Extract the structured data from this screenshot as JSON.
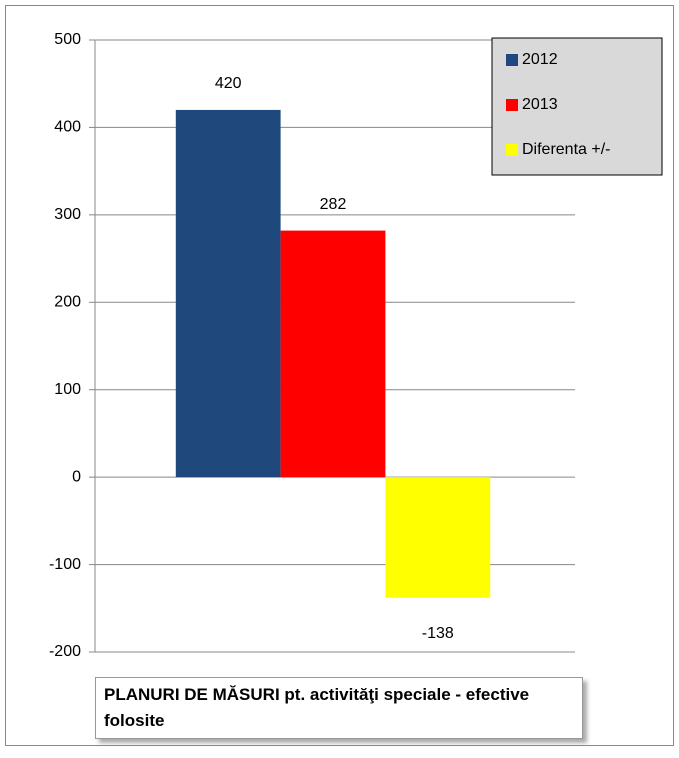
{
  "chart_data": {
    "type": "bar",
    "title": "PLANURI DE MĂSURI pt. activităţi speciale - efective folosite",
    "categories": [
      null
    ],
    "series": [
      {
        "name": "2012",
        "color": "#1f497d",
        "values": [
          420
        ]
      },
      {
        "name": "2013",
        "color": "#ff0000",
        "values": [
          282
        ]
      },
      {
        "name": "Diferenta +/-",
        "color": "#ffff00",
        "values": [
          -138
        ]
      }
    ],
    "ylim": [
      -200,
      500
    ],
    "yticks": [
      -200,
      -100,
      0,
      100,
      200,
      300,
      400,
      500
    ],
    "grid": true,
    "legend": "top-right"
  }
}
